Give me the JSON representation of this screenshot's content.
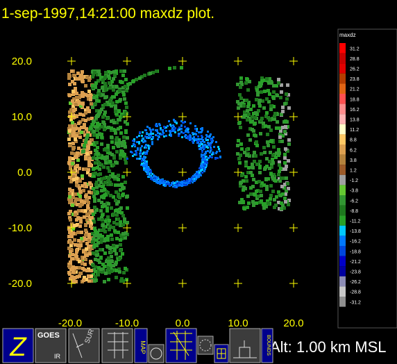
{
  "header": {
    "title": "1-sep-1997,14:21:00  maxdz plot."
  },
  "plot": {
    "x_labels": [
      "-20.0",
      "-10.0",
      "0.0",
      "10.0",
      "20.0"
    ],
    "y_labels": [
      "20.0",
      "10.0",
      "0.0",
      "-10.0",
      "-20.0"
    ]
  },
  "colorbar": {
    "title": "maxdz",
    "levels": [
      "31.2",
      "28.8",
      "26.2",
      "23.8",
      "21.2",
      "18.8",
      "16.2",
      "13.8",
      "11.2",
      "8.8",
      "6.2",
      "3.8",
      "1.2",
      "-1.2",
      "-3.8",
      "-6.2",
      "-8.8",
      "-11.2",
      "-13.8",
      "-16.2",
      "-18.8",
      "-21.2",
      "-23.8",
      "-26.2",
      "-28.8",
      "-31.2"
    ],
    "colors": [
      "#ff0000",
      "#c80000",
      "#e00000",
      "#b43c00",
      "#e06414",
      "#ff5050",
      "#ff8c8c",
      "#ffb4b4",
      "#ffffc8",
      "#ffc864",
      "#dca050",
      "#b4823c",
      "#9c5a28",
      "#a0a0a0",
      "#64c832",
      "#329632",
      "#1e781e",
      "#28a028",
      "#00c8ff",
      "#0078ff",
      "#0046dc",
      "#0000c8",
      "#0000a0",
      "#8c8cb4",
      "#c8c8c8",
      "#909090"
    ]
  },
  "toolbar": {
    "buttons": [
      "Z",
      "GOES",
      "IR",
      "SUR",
      "MAP",
      "BOUNDS"
    ],
    "status": "Alt: 1.00 km MSL"
  }
}
